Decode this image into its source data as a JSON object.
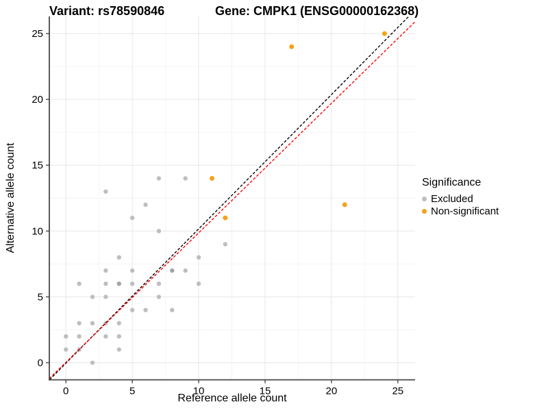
{
  "titles": {
    "variant": "Variant: rs78590846",
    "gene": "Gene: CMPK1 (ENSG00000162368)"
  },
  "chart_data": {
    "type": "scatter",
    "xlabel": "Reference allele count",
    "ylabel": "Alternative allele count",
    "xlim": [
      -1.25,
      26.3
    ],
    "ylim": [
      -1.3,
      26.3
    ],
    "x_ticks": [
      0,
      5,
      10,
      15,
      20,
      25
    ],
    "y_ticks": [
      0,
      5,
      10,
      15,
      20,
      25
    ],
    "x_minor_ticks": [
      2.5,
      7.5,
      12.5,
      17.5,
      22.5
    ],
    "y_minor_ticks": [
      2.5,
      7.5,
      12.5,
      17.5,
      22.5
    ],
    "grid": true,
    "colors": {
      "excluded": "#BEBEBE",
      "excluded_overlap": "#A4A4A4",
      "non_significant": "#F7A118",
      "identity_line": "#000000",
      "fit_line": "#FF0000",
      "axis": "#474747",
      "grid_major": "#E7E7E7",
      "grid_minor": "#F4F4F4"
    },
    "legend": {
      "title": "Significance",
      "position": "right",
      "items": [
        {
          "label": "Excluded",
          "color": "#BEBEBE"
        },
        {
          "label": "Non-significant",
          "color": "#F7A118"
        }
      ]
    },
    "series": [
      {
        "name": "Excluded",
        "color": "#BEBEBE",
        "points": [
          [
            0,
            1
          ],
          [
            0,
            2
          ],
          [
            1,
            1
          ],
          [
            1,
            2
          ],
          [
            1,
            3
          ],
          [
            1,
            6
          ],
          [
            2,
            0
          ],
          [
            2,
            3
          ],
          [
            2,
            5
          ],
          [
            3,
            2
          ],
          [
            3,
            3
          ],
          [
            3,
            5
          ],
          [
            3,
            6
          ],
          [
            3,
            7
          ],
          [
            3,
            13
          ],
          [
            4,
            1
          ],
          [
            4,
            2
          ],
          [
            4,
            3
          ],
          [
            4,
            8
          ],
          [
            5,
            4
          ],
          [
            5,
            6
          ],
          [
            5,
            7
          ],
          [
            5,
            11
          ],
          [
            6,
            4
          ],
          [
            6,
            12
          ],
          [
            7,
            5
          ],
          [
            7,
            6
          ],
          [
            7,
            10
          ],
          [
            7,
            14
          ],
          [
            8,
            4
          ],
          [
            9,
            7
          ],
          [
            9,
            14
          ],
          [
            10,
            6
          ],
          [
            10,
            8
          ],
          [
            12,
            9
          ]
        ]
      },
      {
        "name": "Excluded (overlapping)",
        "color": "#A4A4A4",
        "points": [
          [
            4,
            6
          ],
          [
            8,
            7
          ]
        ]
      },
      {
        "name": "Non-significant",
        "color": "#F7A118",
        "points": [
          [
            11,
            14
          ],
          [
            12,
            11
          ],
          [
            17,
            24
          ],
          [
            21,
            12
          ],
          [
            24,
            25
          ]
        ]
      }
    ],
    "lines": [
      {
        "name": "identity-line",
        "color": "#000000",
        "dash": "4 2.5",
        "from": [
          -1.24,
          -1.3
        ],
        "to": [
          25.8,
          26.28
        ]
      },
      {
        "name": "fit-line",
        "color": "#FF0000",
        "dash": "4 2.5",
        "from": [
          -1.25,
          -1.2
        ],
        "to": [
          26.3,
          25.9
        ]
      }
    ]
  }
}
